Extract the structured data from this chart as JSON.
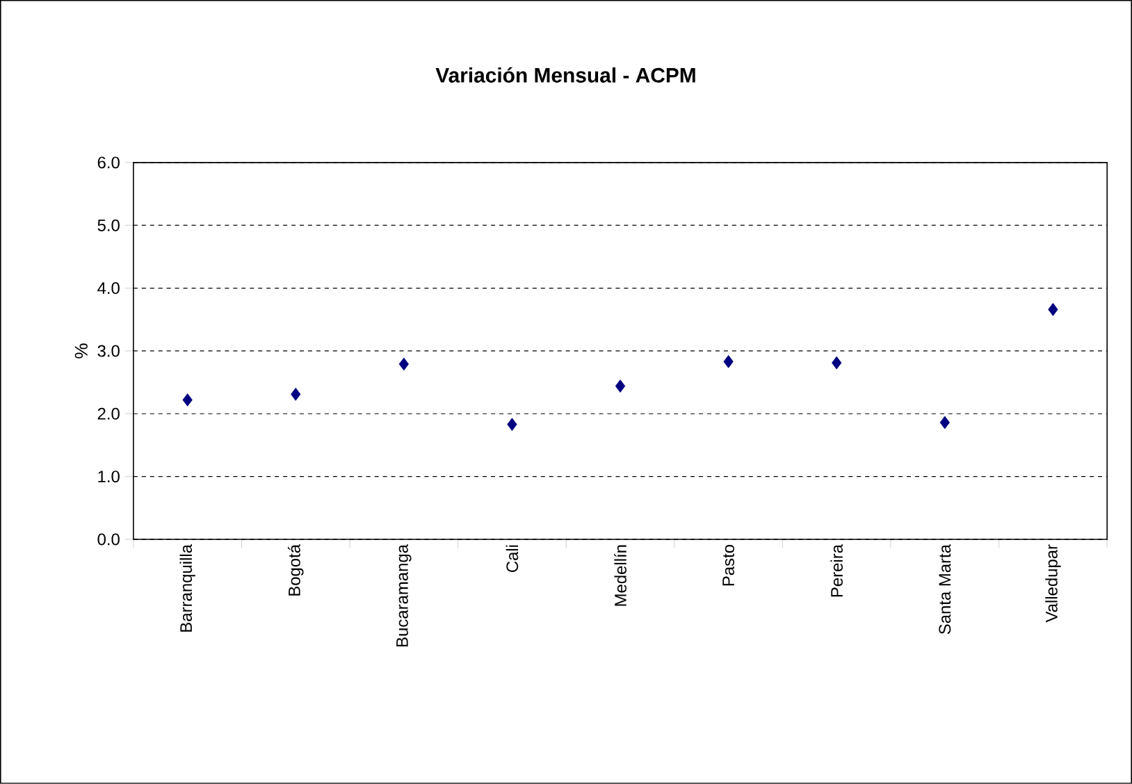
{
  "chart_data": {
    "type": "scatter",
    "title": "Variación Mensual - ACPM",
    "ylabel": "%",
    "categories": [
      "Barranquilla",
      "Bogotá",
      "Bucaramanga",
      "Cali",
      "Medellín",
      "Pasto",
      "Pereira",
      "Santa Marta",
      "Valledupar"
    ],
    "series": [
      {
        "color": "#000080",
        "values": [
          2.22,
          2.31,
          2.79,
          1.83,
          2.44,
          2.83,
          2.81,
          1.86,
          3.66
        ]
      }
    ],
    "ylim": [
      0,
      6
    ],
    "yticks": [
      {
        "value": 0,
        "label": "0.0"
      },
      {
        "value": 1,
        "label": "1.0"
      },
      {
        "value": 2,
        "label": "2.0"
      },
      {
        "value": 3,
        "label": "3.0"
      },
      {
        "value": 4,
        "label": "4.0"
      },
      {
        "value": 5,
        "label": "5.0"
      },
      {
        "value": 6,
        "label": "6.0"
      }
    ],
    "grid": "y",
    "marker": "diamond"
  }
}
